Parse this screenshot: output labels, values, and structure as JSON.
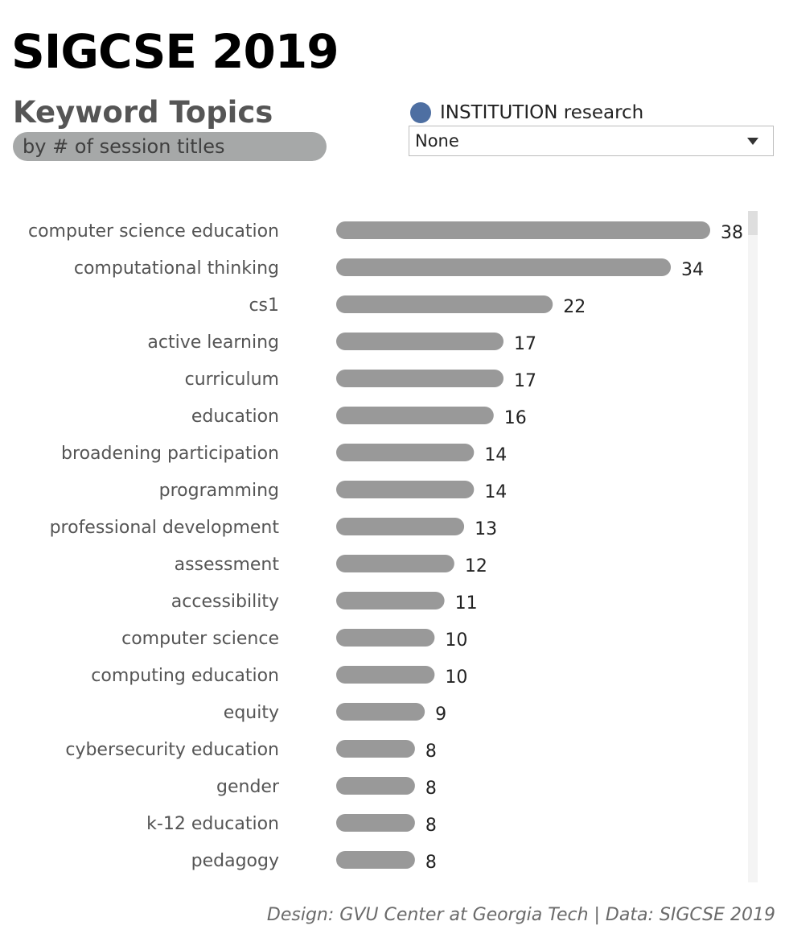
{
  "header": {
    "title": "SIGCSE 2019",
    "subtitle": "Keyword Topics",
    "subtitle_note": "by # of session titles"
  },
  "filter": {
    "label": "INSTITUTION research",
    "selected": "None",
    "dot_color": "#4e6fa2"
  },
  "footer": {
    "credits": "Design: GVU Center at Georgia Tech  |  Data: SIGCSE 2019"
  },
  "colors": {
    "bar": "#999999",
    "category_label": "#555555",
    "value_label": "#222222"
  },
  "chart_data": {
    "type": "bar",
    "orientation": "horizontal",
    "title": "Keyword Topics",
    "subtitle": "by # of session titles",
    "categories": [
      "computer science education",
      "computational thinking",
      "cs1",
      "active learning",
      "curriculum",
      "education",
      "broadening participation",
      "programming",
      "professional development",
      "assessment",
      "accessibility",
      "computer science",
      "computing education",
      "equity",
      "cybersecurity education",
      "gender",
      "k-12 education",
      "pedagogy"
    ],
    "values": [
      38,
      34,
      22,
      17,
      17,
      16,
      14,
      14,
      13,
      12,
      11,
      10,
      10,
      9,
      8,
      8,
      8,
      8
    ],
    "xlim": [
      0,
      38
    ],
    "grid": false,
    "data_labels": true
  }
}
